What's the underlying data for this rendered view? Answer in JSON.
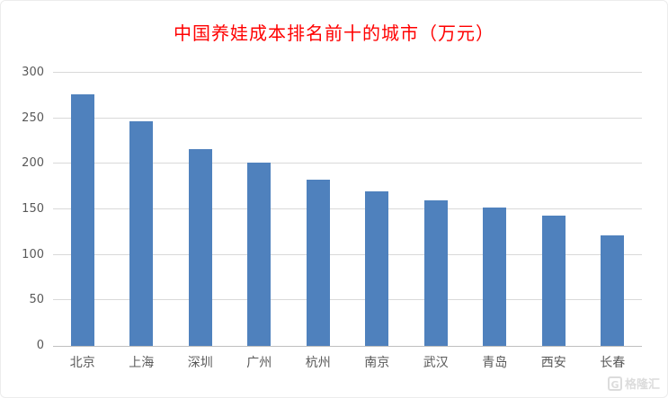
{
  "chart_data": {
    "type": "bar",
    "title": "中国养娃成本排名前十的城市（万元）",
    "title_color": "#ff0000",
    "categories": [
      "北京",
      "上海",
      "深圳",
      "广州",
      "杭州",
      "南京",
      "武汉",
      "青岛",
      "西安",
      "长春"
    ],
    "values": [
      276,
      247,
      216,
      201,
      183,
      170,
      160,
      152,
      143,
      121
    ],
    "xlabel": "",
    "ylabel": "",
    "ylim": [
      0,
      300
    ],
    "yticks": [
      0,
      50,
      100,
      150,
      200,
      250,
      300
    ],
    "grid": true,
    "legend": "none",
    "bar_color": "#4f81bd"
  },
  "watermark": {
    "badge": "G",
    "label": "格隆汇"
  }
}
